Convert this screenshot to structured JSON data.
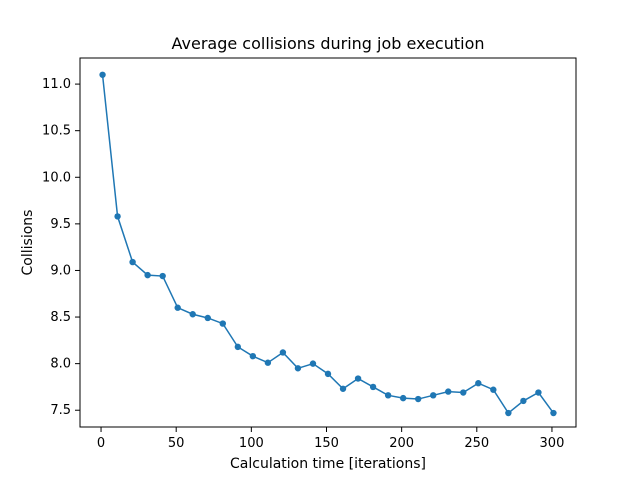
{
  "chart_data": {
    "type": "line",
    "title": "Average collisions during job execution",
    "xlabel": "Calculation time [iterations]",
    "ylabel": "Collisions",
    "xlim": [
      -14,
      316
    ],
    "ylim": [
      7.32,
      11.28
    ],
    "x_ticks": [
      0,
      50,
      100,
      150,
      200,
      250,
      300
    ],
    "y_ticks": [
      7.5,
      8.0,
      8.5,
      9.0,
      9.5,
      10.0,
      10.5,
      11.0
    ],
    "x_tick_labels": [
      "0",
      "50",
      "100",
      "150",
      "200",
      "250",
      "300"
    ],
    "y_tick_labels": [
      "7.5",
      "8.0",
      "8.5",
      "9.0",
      "9.5",
      "10.0",
      "10.5",
      "11.0"
    ],
    "grid": false,
    "legend": "none",
    "series": [
      {
        "color": "#1f77b4",
        "marker": "circle",
        "points": [
          {
            "x": 1,
            "y": 11.1
          },
          {
            "x": 11,
            "y": 9.58
          },
          {
            "x": 21,
            "y": 9.09
          },
          {
            "x": 31,
            "y": 8.95
          },
          {
            "x": 41,
            "y": 8.94
          },
          {
            "x": 51,
            "y": 8.6
          },
          {
            "x": 61,
            "y": 8.53
          },
          {
            "x": 71,
            "y": 8.49
          },
          {
            "x": 81,
            "y": 8.43
          },
          {
            "x": 91,
            "y": 8.18
          },
          {
            "x": 101,
            "y": 8.08
          },
          {
            "x": 111,
            "y": 8.01
          },
          {
            "x": 121,
            "y": 8.12
          },
          {
            "x": 131,
            "y": 7.95
          },
          {
            "x": 141,
            "y": 8.0
          },
          {
            "x": 151,
            "y": 7.89
          },
          {
            "x": 161,
            "y": 7.73
          },
          {
            "x": 171,
            "y": 7.84
          },
          {
            "x": 181,
            "y": 7.75
          },
          {
            "x": 191,
            "y": 7.66
          },
          {
            "x": 201,
            "y": 7.63
          },
          {
            "x": 211,
            "y": 7.62
          },
          {
            "x": 221,
            "y": 7.66
          },
          {
            "x": 231,
            "y": 7.7
          },
          {
            "x": 241,
            "y": 7.69
          },
          {
            "x": 251,
            "y": 7.79
          },
          {
            "x": 261,
            "y": 7.72
          },
          {
            "x": 271,
            "y": 7.47
          },
          {
            "x": 281,
            "y": 7.6
          },
          {
            "x": 291,
            "y": 7.69
          },
          {
            "x": 301,
            "y": 7.47
          }
        ]
      }
    ]
  }
}
